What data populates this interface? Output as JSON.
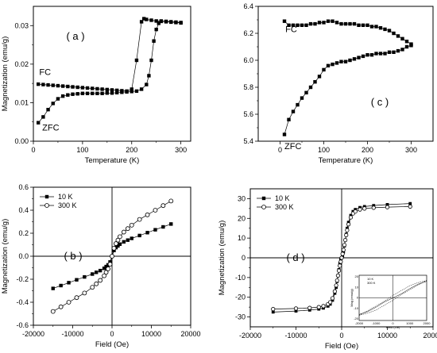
{
  "chart_data": [
    {
      "id": "a",
      "type": "line",
      "panel_label": "( a )",
      "xlabel": "Temperature (K)",
      "ylabel": "Magnetization (emu/g)",
      "xlim": [
        0,
        320
      ],
      "ylim": [
        0,
        0.035
      ],
      "xticks": [
        0,
        100,
        200,
        300
      ],
      "yticks": [
        0.0,
        0.01,
        0.02,
        0.03
      ],
      "ytick_labels": [
        "0.00",
        "0.01",
        "0.02",
        "0.03"
      ],
      "grid": false,
      "series": [
        {
          "name": "FC",
          "marker": "filled-square",
          "x": [
            10,
            20,
            30,
            40,
            50,
            60,
            70,
            80,
            90,
            100,
            110,
            120,
            130,
            140,
            150,
            160,
            170,
            180,
            190,
            200,
            210,
            220,
            225,
            230,
            240,
            250,
            260,
            270,
            280,
            290,
            300
          ],
          "y": [
            0.0148,
            0.0147,
            0.0146,
            0.0145,
            0.0144,
            0.0143,
            0.0142,
            0.0141,
            0.014,
            0.0139,
            0.0138,
            0.0137,
            0.0136,
            0.0135,
            0.0134,
            0.0133,
            0.0132,
            0.0131,
            0.013,
            0.0135,
            0.021,
            0.031,
            0.0318,
            0.0316,
            0.0314,
            0.0312,
            0.0311,
            0.031,
            0.0309,
            0.0308,
            0.0307
          ]
        },
        {
          "name": "ZFC",
          "marker": "filled-square",
          "x": [
            10,
            20,
            30,
            40,
            50,
            60,
            70,
            80,
            90,
            100,
            110,
            120,
            130,
            140,
            150,
            160,
            170,
            180,
            190,
            200,
            210,
            220,
            230,
            235,
            240,
            245,
            250,
            255,
            260,
            270,
            280,
            290,
            300
          ],
          "y": [
            0.0048,
            0.0063,
            0.0082,
            0.0098,
            0.011,
            0.0117,
            0.012,
            0.0122,
            0.0123,
            0.0124,
            0.0124,
            0.0124,
            0.0124,
            0.0124,
            0.0125,
            0.0125,
            0.0126,
            0.0127,
            0.0128,
            0.0129,
            0.013,
            0.0135,
            0.0147,
            0.017,
            0.021,
            0.026,
            0.029,
            0.0306,
            0.0312,
            0.0311,
            0.031,
            0.0309,
            0.0308
          ]
        }
      ],
      "annotations": [
        {
          "text": "FC",
          "x": 12,
          "y": 0.0172
        },
        {
          "text": "ZFC",
          "x": 18,
          "y": 0.0028
        }
      ]
    },
    {
      "id": "c",
      "type": "line",
      "panel_label": "( c )",
      "xlabel": "Temperature (K)",
      "ylabel": "",
      "xlim": [
        -50,
        350
      ],
      "ylim": [
        5.4,
        6.4
      ],
      "xticks": [
        0,
        100,
        200,
        300
      ],
      "yticks": [
        5.4,
        5.6,
        5.8,
        6.0,
        6.2,
        6.4
      ],
      "ytick_labels": [
        "5.4",
        "5.6",
        "5.8",
        "6.0",
        "6.2",
        "6.4"
      ],
      "grid": false,
      "series": [
        {
          "name": "FC",
          "marker": "filled-square",
          "x": [
            10,
            20,
            30,
            40,
            50,
            60,
            70,
            80,
            90,
            100,
            110,
            120,
            130,
            140,
            150,
            160,
            170,
            180,
            190,
            200,
            210,
            220,
            230,
            240,
            250,
            260,
            270,
            280,
            290,
            300
          ],
          "y": [
            6.29,
            6.26,
            6.26,
            6.26,
            6.26,
            6.26,
            6.27,
            6.27,
            6.28,
            6.28,
            6.29,
            6.29,
            6.28,
            6.27,
            6.27,
            6.27,
            6.27,
            6.26,
            6.26,
            6.26,
            6.25,
            6.25,
            6.24,
            6.23,
            6.22,
            6.2,
            6.18,
            6.16,
            6.14,
            6.12
          ]
        },
        {
          "name": "ZFC",
          "marker": "filled-square",
          "x": [
            10,
            20,
            30,
            40,
            50,
            60,
            70,
            80,
            90,
            100,
            110,
            120,
            130,
            140,
            150,
            160,
            170,
            180,
            190,
            200,
            210,
            220,
            230,
            240,
            250,
            260,
            270,
            280,
            290,
            300
          ],
          "y": [
            5.45,
            5.56,
            5.62,
            5.67,
            5.72,
            5.76,
            5.8,
            5.84,
            5.88,
            5.93,
            5.96,
            5.97,
            5.98,
            5.99,
            5.99,
            6.0,
            6.01,
            6.02,
            6.03,
            6.04,
            6.04,
            6.05,
            6.05,
            6.05,
            6.06,
            6.06,
            6.07,
            6.08,
            6.1,
            6.11
          ]
        }
      ],
      "annotations": [
        {
          "text": "FC",
          "x": 12,
          "y": 6.21
        },
        {
          "text": "ZFC",
          "x": 10,
          "y": 5.34
        }
      ]
    },
    {
      "id": "b",
      "type": "line",
      "panel_label": "( b )",
      "xlabel": "Field (Oe)",
      "ylabel": "Magnetization (emu/g)",
      "xlim": [
        -20000,
        20000
      ],
      "ylim": [
        -0.6,
        0.6
      ],
      "xticks": [
        -20000,
        -10000,
        0,
        10000,
        20000
      ],
      "yticks": [
        -0.6,
        -0.4,
        -0.2,
        0.0,
        0.2,
        0.4,
        0.6
      ],
      "ytick_labels": [
        "-0.6",
        "-0.4",
        "-0.2",
        "0.0",
        "0.2",
        "0.4",
        "0.6"
      ],
      "grid": false,
      "legend": {
        "placement": "top-left",
        "entries": [
          "10 K",
          "300 K"
        ]
      },
      "series": [
        {
          "name": "10 K",
          "marker": "filled-square",
          "x": [
            -15000,
            -13000,
            -11000,
            -9000,
            -7000,
            -5000,
            -4000,
            -3000,
            -2000,
            -1500,
            -1000,
            -500,
            0,
            500,
            1000,
            1500,
            2000,
            3000,
            4000,
            5000,
            7000,
            9000,
            11000,
            13000,
            15000
          ],
          "y": [
            -0.28,
            -0.255,
            -0.23,
            -0.205,
            -0.18,
            -0.155,
            -0.14,
            -0.125,
            -0.105,
            -0.09,
            -0.075,
            -0.05,
            0.0,
            0.05,
            0.075,
            0.09,
            0.105,
            0.125,
            0.14,
            0.155,
            0.18,
            0.205,
            0.23,
            0.255,
            0.28
          ]
        },
        {
          "name": "300 K",
          "marker": "open-circle",
          "x": [
            -15000,
            -13000,
            -11000,
            -9000,
            -7000,
            -5000,
            -4000,
            -3000,
            -2000,
            -1500,
            -1000,
            -500,
            0,
            500,
            1000,
            1500,
            2000,
            3000,
            4000,
            5000,
            7000,
            9000,
            11000,
            13000,
            15000
          ],
          "y": [
            -0.48,
            -0.44,
            -0.4,
            -0.36,
            -0.32,
            -0.27,
            -0.24,
            -0.21,
            -0.17,
            -0.14,
            -0.11,
            -0.07,
            0.0,
            0.07,
            0.11,
            0.14,
            0.17,
            0.21,
            0.24,
            0.27,
            0.32,
            0.36,
            0.4,
            0.44,
            0.48
          ]
        }
      ]
    },
    {
      "id": "d",
      "type": "line",
      "panel_label": "( d )",
      "xlabel": "Field (Oe)",
      "ylabel": "Magnetization (emu/g)",
      "xlim": [
        -20000,
        20000
      ],
      "ylim": [
        -35,
        35
      ],
      "xticks": [
        -20000,
        -10000,
        0,
        10000,
        20000
      ],
      "yticks": [
        -30,
        -20,
        -10,
        0,
        10,
        20,
        30
      ],
      "ytick_labels": [
        "-30",
        "-20",
        "-10",
        "0",
        "10",
        "20",
        "30"
      ],
      "grid": false,
      "legend": {
        "placement": "top-left",
        "entries": [
          "10 K",
          "300 K"
        ]
      },
      "series": [
        {
          "name": "10 K",
          "marker": "filled-square",
          "x": [
            -15000,
            -10000,
            -7000,
            -5000,
            -4000,
            -3000,
            -2500,
            -2000,
            -1500,
            -1200,
            -1000,
            -800,
            -600,
            -400,
            -200,
            0,
            200,
            400,
            600,
            800,
            1000,
            1200,
            1500,
            2000,
            2500,
            3000,
            4000,
            5000,
            7000,
            10000,
            15000
          ],
          "y": [
            -27.5,
            -27,
            -26.5,
            -26,
            -25.5,
            -24.5,
            -23.5,
            -21.5,
            -18,
            -15,
            -12,
            -9,
            -6,
            -3,
            -1,
            0,
            1,
            3,
            6,
            9,
            12,
            15,
            18,
            21.5,
            23.5,
            24.5,
            25.5,
            26,
            26.5,
            27,
            27.5
          ]
        },
        {
          "name": "300 K",
          "marker": "open-circle",
          "x": [
            -15000,
            -10000,
            -7000,
            -5000,
            -4000,
            -3000,
            -2500,
            -2000,
            -1500,
            -1200,
            -1000,
            -800,
            -600,
            -400,
            -200,
            0,
            200,
            400,
            600,
            800,
            1000,
            1200,
            1500,
            2000,
            2500,
            3000,
            4000,
            5000,
            7000,
            10000,
            15000
          ],
          "y": [
            -26,
            -25.7,
            -25.4,
            -25,
            -24.5,
            -23.5,
            -22.5,
            -20.5,
            -17,
            -14,
            -11.5,
            -9,
            -6.5,
            -4,
            -2,
            0,
            2,
            4,
            6.5,
            9,
            11.5,
            14,
            17,
            20.5,
            22.5,
            23.5,
            24.5,
            25,
            25.4,
            25.7,
            26
          ]
        }
      ],
      "inset": {
        "legend_entries": [
          "10 K",
          "300 K"
        ],
        "xlabel": "Field (Oe)",
        "ylabel": "Mag (emu/g)",
        "xtick_labels": [
          "-2000",
          "-1000",
          "0",
          "1000",
          "2000"
        ],
        "ytick_labels": [
          "20",
          "10",
          "0",
          "-10",
          "-20"
        ]
      }
    }
  ]
}
